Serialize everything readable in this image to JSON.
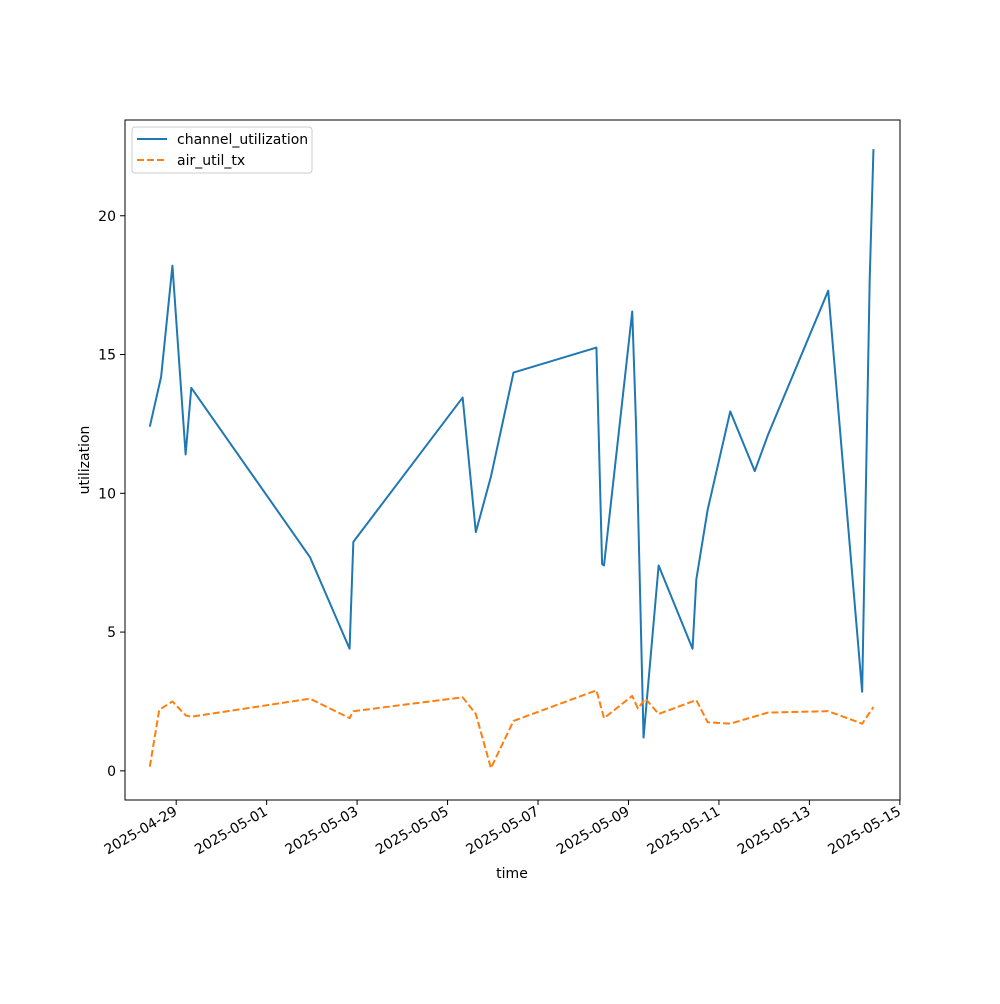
{
  "chart_data": {
    "type": "line",
    "title": "",
    "xlabel": "time",
    "ylabel": "utilization",
    "x_axis_type": "date",
    "xlim": [
      "2025-04-27T20:50",
      "2025-05-15T00:05"
    ],
    "ylim": [
      -1.05,
      23.45
    ],
    "x_ticks": [
      "2025-04-29",
      "2025-05-01",
      "2025-05-03",
      "2025-05-05",
      "2025-05-07",
      "2025-05-09",
      "2025-05-11",
      "2025-05-13",
      "2025-05-15"
    ],
    "y_ticks": [
      0,
      5,
      10,
      15,
      20
    ],
    "grid": false,
    "legend": {
      "location": "upper-left"
    },
    "series": [
      {
        "name": "channel_utilization",
        "color": "#1f77b4",
        "dash": "solid",
        "points": [
          [
            "2025-04-28T10:00",
            12.4
          ],
          [
            "2025-04-28T16:00",
            14.2
          ],
          [
            "2025-04-28T22:00",
            18.2
          ],
          [
            "2025-04-29T05:00",
            11.4
          ],
          [
            "2025-04-29T08:00",
            13.8
          ],
          [
            "2025-05-01T23:00",
            7.7
          ],
          [
            "2025-05-02T20:00",
            4.4
          ],
          [
            "2025-05-02T22:00",
            8.25
          ],
          [
            "2025-05-05T08:00",
            13.45
          ],
          [
            "2025-05-05T15:00",
            8.6
          ],
          [
            "2025-05-05T23:00",
            10.6
          ],
          [
            "2025-05-06T11:00",
            14.35
          ],
          [
            "2025-05-08T07:00",
            15.25
          ],
          [
            "2025-05-08T10:00",
            7.45
          ],
          [
            "2025-05-08T11:00",
            7.4
          ],
          [
            "2025-05-09T02:00",
            16.55
          ],
          [
            "2025-05-09T04:00",
            12.5
          ],
          [
            "2025-05-09T08:00",
            1.2
          ],
          [
            "2025-05-09T16:00",
            7.4
          ],
          [
            "2025-05-10T10:00",
            4.4
          ],
          [
            "2025-05-10T12:00",
            6.9
          ],
          [
            "2025-05-10T18:00",
            9.4
          ],
          [
            "2025-05-11T06:00",
            12.95
          ],
          [
            "2025-05-11T19:00",
            10.8
          ],
          [
            "2025-05-12T02:00",
            12.1
          ],
          [
            "2025-05-13T10:00",
            17.3
          ],
          [
            "2025-05-14T04:00",
            2.85
          ],
          [
            "2025-05-14T08:00",
            17.7
          ],
          [
            "2025-05-14T10:00",
            22.4
          ]
        ]
      },
      {
        "name": "air_util_tx",
        "color": "#ff7f0e",
        "dash": "dashed",
        "points": [
          [
            "2025-04-28T10:00",
            0.15
          ],
          [
            "2025-04-28T15:00",
            2.2
          ],
          [
            "2025-04-28T22:00",
            2.5
          ],
          [
            "2025-04-29T05:00",
            2.0
          ],
          [
            "2025-04-29T08:00",
            1.95
          ],
          [
            "2025-05-01T23:00",
            2.6
          ],
          [
            "2025-05-02T20:00",
            1.9
          ],
          [
            "2025-05-02T22:00",
            2.15
          ],
          [
            "2025-05-05T08:00",
            2.65
          ],
          [
            "2025-05-05T15:00",
            2.05
          ],
          [
            "2025-05-05T23:00",
            0.1
          ],
          [
            "2025-05-06T11:00",
            1.8
          ],
          [
            "2025-05-08T07:00",
            2.9
          ],
          [
            "2025-05-08T11:00",
            1.9
          ],
          [
            "2025-05-09T02:00",
            2.7
          ],
          [
            "2025-05-09T05:00",
            2.25
          ],
          [
            "2025-05-09T09:00",
            2.6
          ],
          [
            "2025-05-09T16:00",
            2.05
          ],
          [
            "2025-05-10T12:00",
            2.55
          ],
          [
            "2025-05-10T18:00",
            1.75
          ],
          [
            "2025-05-11T06:00",
            1.7
          ],
          [
            "2025-05-12T02:00",
            2.1
          ],
          [
            "2025-05-13T10:00",
            2.15
          ],
          [
            "2025-05-14T04:00",
            1.7
          ],
          [
            "2025-05-14T10:00",
            2.3
          ]
        ]
      }
    ]
  }
}
